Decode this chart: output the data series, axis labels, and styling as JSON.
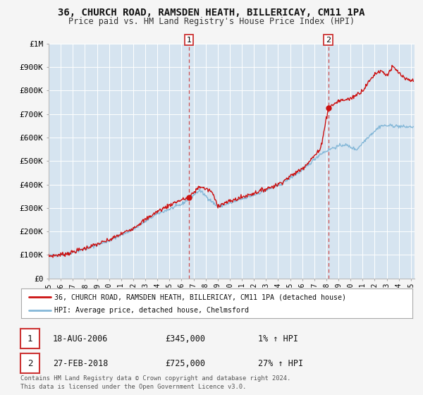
{
  "title": "36, CHURCH ROAD, RAMSDEN HEATH, BILLERICAY, CM11 1PA",
  "subtitle": "Price paid vs. HM Land Registry's House Price Index (HPI)",
  "background_color": "#f5f5f5",
  "plot_bg_color": "#d6e4f0",
  "grid_color": "#ffffff",
  "ylim": [
    0,
    1000000
  ],
  "xlim_start": 1995.0,
  "xlim_end": 2025.3,
  "hpi_line_color": "#85b8d8",
  "price_line_color": "#cc1111",
  "marker_color": "#cc1111",
  "vline_color": "#cc3333",
  "transaction1_x": 2006.63,
  "transaction1_y": 345000,
  "transaction2_x": 2018.16,
  "transaction2_y": 725000,
  "legend_line1": "36, CHURCH ROAD, RAMSDEN HEATH, BILLERICAY, CM11 1PA (detached house)",
  "legend_line2": "HPI: Average price, detached house, Chelmsford",
  "table_row1_num": "1",
  "table_row1_date": "18-AUG-2006",
  "table_row1_price": "£345,000",
  "table_row1_hpi": "1% ↑ HPI",
  "table_row2_num": "2",
  "table_row2_date": "27-FEB-2018",
  "table_row2_price": "£725,000",
  "table_row2_hpi": "27% ↑ HPI",
  "footer_line1": "Contains HM Land Registry data © Crown copyright and database right 2024.",
  "footer_line2": "This data is licensed under the Open Government Licence v3.0.",
  "yticks": [
    0,
    100000,
    200000,
    300000,
    400000,
    500000,
    600000,
    700000,
    800000,
    900000,
    1000000
  ],
  "ytick_labels": [
    "£0",
    "£100K",
    "£200K",
    "£300K",
    "£400K",
    "£500K",
    "£600K",
    "£700K",
    "£800K",
    "£900K",
    "£1M"
  ],
  "xtick_years": [
    1995,
    1996,
    1997,
    1998,
    1999,
    2000,
    2001,
    2002,
    2003,
    2004,
    2005,
    2006,
    2007,
    2008,
    2009,
    2010,
    2011,
    2012,
    2013,
    2014,
    2015,
    2016,
    2017,
    2018,
    2019,
    2020,
    2021,
    2022,
    2023,
    2024,
    2025
  ]
}
